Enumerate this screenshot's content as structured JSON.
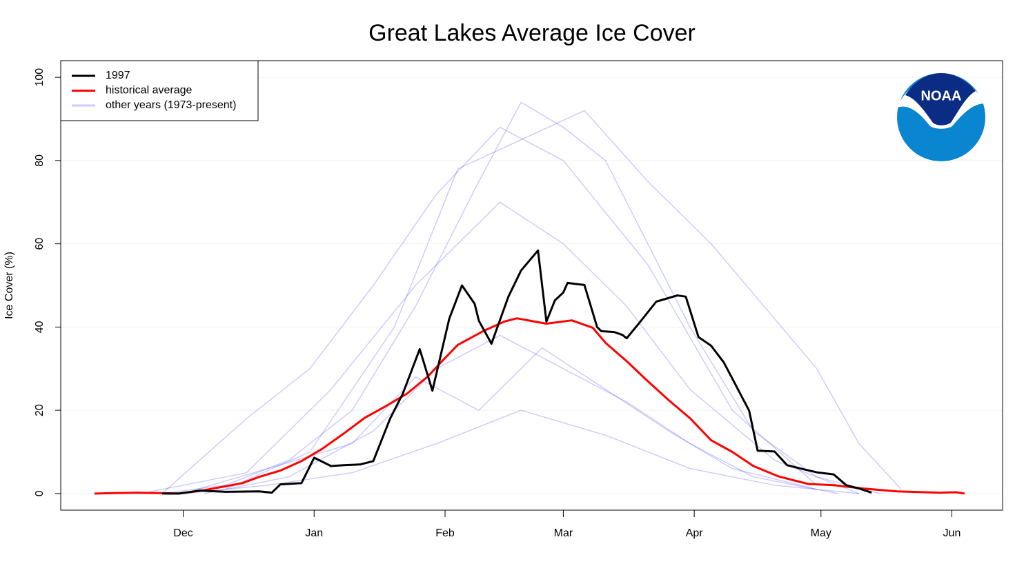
{
  "chart_data": {
    "type": "line",
    "title": "Great Lakes Average Ice Cover",
    "ylabel": "Ice Cover (%)",
    "xlim": [
      -29,
      194
    ],
    "xticks": [
      {
        "value": 0,
        "label": "Dec"
      },
      {
        "value": 31,
        "label": "Jan"
      },
      {
        "value": 62,
        "label": "Feb"
      },
      {
        "value": 90,
        "label": "Mar"
      },
      {
        "value": 121,
        "label": "Apr"
      },
      {
        "value": 151,
        "label": "May"
      },
      {
        "value": 182,
        "label": "Jun"
      }
    ],
    "ylim": [
      -4,
      104
    ],
    "yticks": [
      0,
      20,
      40,
      60,
      80,
      100
    ],
    "grid": true,
    "legend": "top-left",
    "series": [
      {
        "name": "1997",
        "color": "#000000",
        "x": [
          -5,
          -1,
          4,
          10,
          18,
          21,
          23,
          28,
          31,
          35,
          38,
          42,
          45,
          49,
          52,
          56,
          59,
          63,
          66,
          69,
          70,
          73,
          77,
          80,
          84,
          86,
          88,
          90,
          91,
          95,
          98,
          99,
          102,
          104,
          105,
          108,
          112,
          117,
          119,
          122,
          125,
          128,
          131,
          134,
          136,
          140,
          143,
          147,
          150,
          154,
          157,
          160,
          163
        ],
        "values": [
          0,
          0,
          0.7,
          0.4,
          0.5,
          0.2,
          2.2,
          2.5,
          8.6,
          6.6,
          6.8,
          7,
          7.8,
          18,
          24,
          34.7,
          24.7,
          42,
          50,
          45.6,
          41.5,
          36,
          47.3,
          53.6,
          58.4,
          41.3,
          46.4,
          48.3,
          50.6,
          50.1,
          40,
          39,
          38.8,
          38.1,
          37.3,
          41,
          46.1,
          47.6,
          47.3,
          37.6,
          35.5,
          31.5,
          25.7,
          19.9,
          10.3,
          10.1,
          6.8,
          5.8,
          5.1,
          4.6,
          2,
          1.2,
          0.2
        ]
      },
      {
        "name": "historical average",
        "color": "#ff0000",
        "x": [
          -21,
          -11,
          -1,
          5,
          14,
          18,
          23,
          28,
          33,
          38,
          43,
          48,
          53,
          58,
          61,
          65,
          71,
          76,
          79,
          86,
          92,
          97,
          100,
          105,
          110,
          115,
          120,
          125,
          130,
          135,
          141,
          148,
          154,
          161,
          169,
          179,
          183,
          185
        ],
        "values": [
          0,
          0.2,
          0,
          0.8,
          2.5,
          4,
          5.5,
          7.8,
          10.8,
          14.4,
          18.2,
          21,
          24,
          28.2,
          31.5,
          35.7,
          39,
          41.3,
          42.1,
          40.8,
          41.6,
          39.8,
          36.2,
          31.8,
          27,
          22.4,
          18.1,
          12.8,
          10,
          6.6,
          4.1,
          2.3,
          2,
          1.2,
          0.5,
          0.2,
          0.3,
          0
        ]
      },
      {
        "name": "other years (1973-present)",
        "color": "#0000ff",
        "lines": [
          {
            "x": [
              -5,
              10,
              25,
              40,
              55,
              70,
              80,
              90,
              100,
              110,
              120,
              135,
              150,
              165
            ],
            "values": [
              0,
              2,
              8,
              20,
              45,
              75,
              94,
              88,
              80,
              60,
              40,
              15,
              4,
              0
            ]
          },
          {
            "x": [
              10,
              30,
              50,
              65,
              80,
              95,
              110,
              125,
              140,
              150,
              160,
              170
            ],
            "values": [
              1,
              10,
              40,
              78,
              85,
              92,
              75,
              60,
              42,
              30,
              12,
              1
            ]
          },
          {
            "x": [
              0,
              20,
              40,
              60,
              80,
              100,
              120,
              140,
              160
            ],
            "values": [
              0,
              2,
              5,
              12,
              20,
              14,
              6,
              2,
              0
            ]
          },
          {
            "x": [
              -10,
              15,
              35,
              55,
              75,
              90,
              105,
              120,
              140,
              160
            ],
            "values": [
              0,
              5,
              25,
              50,
              70,
              60,
              45,
              25,
              8,
              0
            ]
          },
          {
            "x": [
              -5,
              15,
              30,
              45,
              60,
              75,
              90,
              110,
              130,
              150
            ],
            "values": [
              0,
              18,
              30,
              50,
              72,
              88,
              80,
              55,
              20,
              2
            ]
          },
          {
            "x": [
              5,
              25,
              45,
              60,
              75,
              90,
              105,
              120,
              135,
              155
            ],
            "values": [
              0,
              4,
              15,
              30,
              38,
              30,
              22,
              12,
              4,
              0
            ]
          },
          {
            "x": [
              0,
              20,
              40,
              55,
              70,
              85,
              100,
              115,
              130,
              150
            ],
            "values": [
              0,
              6,
              12,
              28,
              20,
              35,
              25,
              15,
              6,
              1
            ]
          }
        ]
      }
    ]
  },
  "logo": "NOAA"
}
